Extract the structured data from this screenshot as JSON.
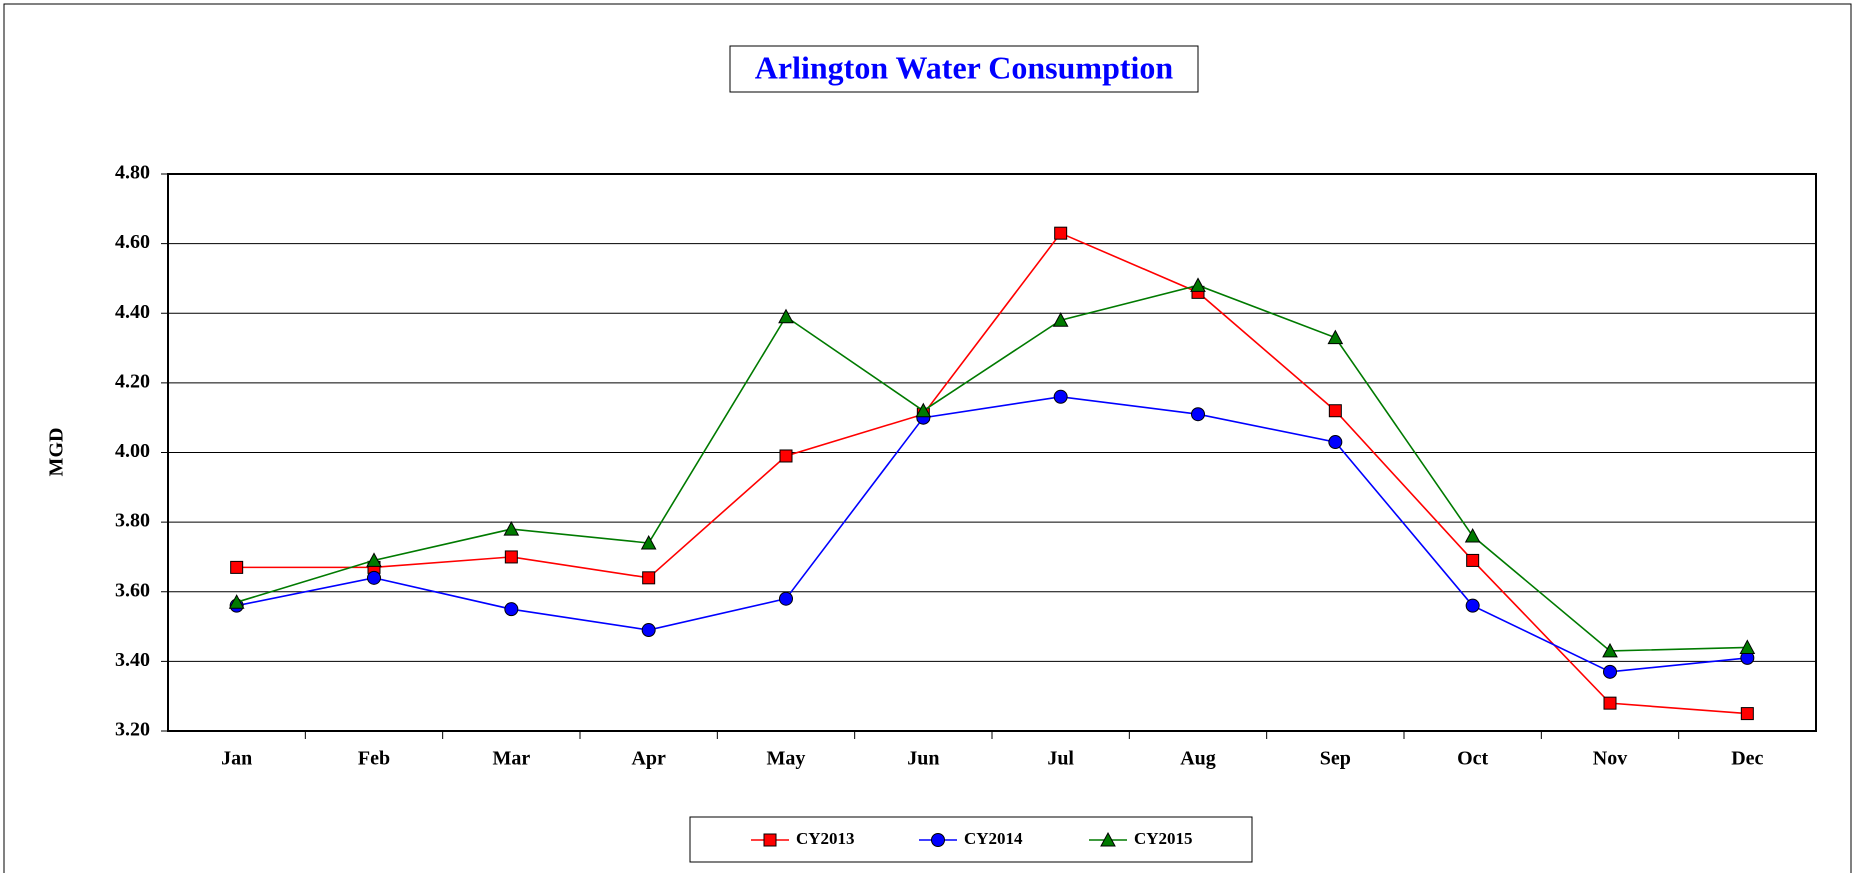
{
  "chart_data": {
    "type": "line",
    "title": "Arlington Water Consumption",
    "y_label": "MGD",
    "categories": [
      "Jan",
      "Feb",
      "Mar",
      "Apr",
      "May",
      "Jun",
      "Jul",
      "Aug",
      "Sep",
      "Oct",
      "Nov",
      "Dec"
    ],
    "series": [
      {
        "name": "CY2013",
        "color": "#ff0000",
        "marker": "square",
        "values": [
          3.67,
          3.67,
          3.7,
          3.64,
          3.99,
          4.11,
          4.63,
          4.46,
          4.12,
          3.69,
          3.28,
          3.25
        ]
      },
      {
        "name": "CY2014",
        "color": "#0000ff",
        "marker": "circle",
        "values": [
          3.56,
          3.64,
          3.55,
          3.49,
          3.58,
          4.1,
          4.16,
          4.11,
          4.03,
          3.56,
          3.37,
          3.41
        ]
      },
      {
        "name": "CY2015",
        "color": "#007a00",
        "marker": "triangle",
        "values": [
          3.57,
          3.69,
          3.78,
          3.74,
          4.39,
          4.12,
          4.38,
          4.48,
          4.33,
          3.76,
          3.43,
          3.44
        ]
      }
    ],
    "ylim": [
      3.2,
      4.8
    ],
    "yticks": [
      {
        "value": 3.2,
        "label": "3.20"
      },
      {
        "value": 3.4,
        "label": "3.40"
      },
      {
        "value": 3.6,
        "label": "3.60"
      },
      {
        "value": 3.8,
        "label": "3.80"
      },
      {
        "value": 4.0,
        "label": "4.00"
      },
      {
        "value": 4.2,
        "label": "4.20"
      },
      {
        "value": 4.4,
        "label": "4.40"
      },
      {
        "value": 4.6,
        "label": "4.60"
      },
      {
        "value": 4.8,
        "label": "4.80"
      }
    ],
    "grid": true,
    "legend": "bottom"
  }
}
